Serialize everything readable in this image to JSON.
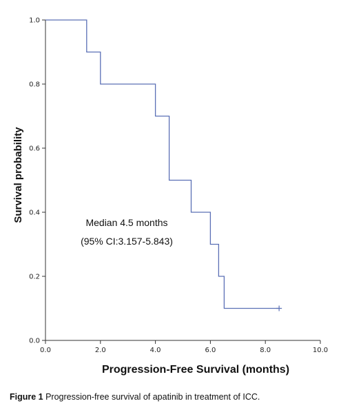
{
  "chart_data": {
    "type": "line",
    "ylabel": "Survival probability",
    "xlabel": "Progression-Free Survival (months)",
    "xlim": [
      0,
      10
    ],
    "ylim": [
      0,
      1
    ],
    "x_ticks": [
      "0.0",
      "2.0",
      "4.0",
      "6.0",
      "8.0",
      "10.0"
    ],
    "y_ticks": [
      "0.0",
      "0.2",
      "0.4",
      "0.6",
      "0.8",
      "1.0"
    ],
    "line_color": "#5a6fb5",
    "series": [
      {
        "step": true,
        "points": [
          [
            0,
            1.0
          ],
          [
            1.5,
            1.0
          ],
          [
            1.5,
            0.9
          ],
          [
            2.0,
            0.9
          ],
          [
            2.0,
            0.8
          ],
          [
            4.0,
            0.8
          ],
          [
            4.0,
            0.7
          ],
          [
            4.5,
            0.7
          ],
          [
            4.5,
            0.5
          ],
          [
            5.3,
            0.5
          ],
          [
            5.3,
            0.4
          ],
          [
            6.0,
            0.4
          ],
          [
            6.0,
            0.3
          ],
          [
            6.3,
            0.3
          ],
          [
            6.3,
            0.2
          ],
          [
            6.5,
            0.2
          ],
          [
            6.5,
            0.1
          ],
          [
            8.5,
            0.1
          ]
        ],
        "censored": [
          [
            8.5,
            0.1
          ]
        ]
      }
    ],
    "annotations": [
      "Median 4.5 months",
      "(95% CI:3.157-5.843)"
    ],
    "grid": false
  },
  "caption": {
    "label": "Figure 1",
    "text": " Progression-free survival of apatinib in treatment of ICC."
  }
}
